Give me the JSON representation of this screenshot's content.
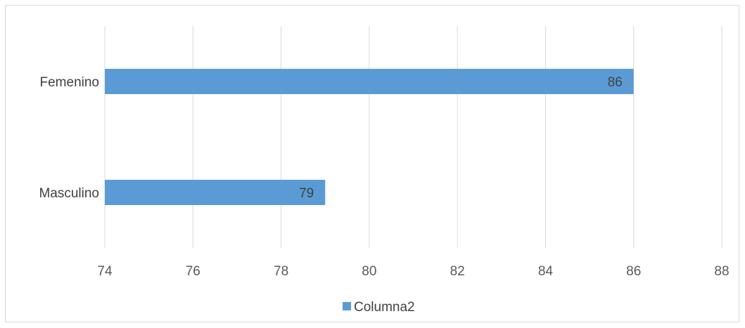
{
  "chart_data": {
    "type": "bar",
    "orientation": "horizontal",
    "categories": [
      "Femenino",
      "Masculino"
    ],
    "series": [
      {
        "name": "Columna2",
        "values": [
          86,
          79
        ],
        "color": "#5b9bd5"
      }
    ],
    "data_labels": [
      "86",
      "79"
    ],
    "xlim": [
      74,
      88
    ],
    "x_ticks": [
      74,
      76,
      78,
      80,
      82,
      84,
      86,
      88
    ],
    "grid": true,
    "legend_position": "bottom",
    "title": "",
    "xlabel": "",
    "ylabel": ""
  }
}
